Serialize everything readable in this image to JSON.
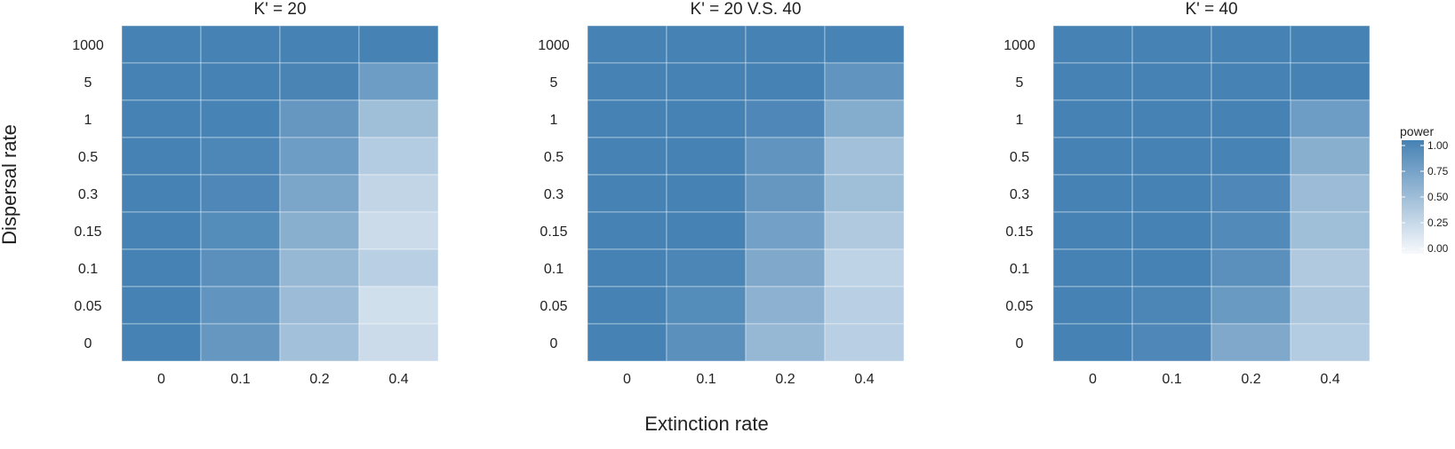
{
  "chart_data": {
    "type": "heatmap",
    "xlabel": "Extinction rate",
    "ylabel": "Dispersal rate",
    "x_categories": [
      "0",
      "0.1",
      "0.2",
      "0.4"
    ],
    "y_categories": [
      "1000",
      "5",
      "1",
      "0.5",
      "0.3",
      "0.15",
      "0.1",
      "0.05",
      "0"
    ],
    "color_low": "#f7f9fc",
    "color_high": "#4682b4",
    "legend": {
      "title": "power",
      "ticks": [
        "1.00",
        "0.75",
        "0.50",
        "0.25",
        "0.00"
      ],
      "range": [
        0,
        1
      ],
      "placement": "right"
    },
    "panels": [
      {
        "title": "K' = 20",
        "values": [
          [
            1.0,
            1.0,
            1.0,
            1.0
          ],
          [
            1.0,
            1.0,
            0.98,
            0.78
          ],
          [
            1.0,
            0.99,
            0.82,
            0.5
          ],
          [
            1.0,
            0.96,
            0.78,
            0.38
          ],
          [
            1.0,
            0.95,
            0.7,
            0.3
          ],
          [
            1.0,
            0.92,
            0.62,
            0.25
          ],
          [
            1.0,
            0.88,
            0.55,
            0.35
          ],
          [
            1.0,
            0.85,
            0.52,
            0.22
          ],
          [
            1.0,
            0.82,
            0.48,
            0.25
          ]
        ]
      },
      {
        "title": "K' = 20 V.S. 40",
        "values": [
          [
            1.0,
            1.0,
            1.0,
            0.99
          ],
          [
            1.0,
            1.0,
            1.0,
            0.85
          ],
          [
            1.0,
            1.0,
            0.95,
            0.65
          ],
          [
            1.0,
            1.0,
            0.85,
            0.48
          ],
          [
            1.0,
            1.0,
            0.82,
            0.5
          ],
          [
            1.0,
            1.0,
            0.75,
            0.4
          ],
          [
            1.0,
            0.97,
            0.68,
            0.32
          ],
          [
            1.0,
            0.92,
            0.6,
            0.35
          ],
          [
            1.0,
            0.88,
            0.55,
            0.35
          ]
        ]
      },
      {
        "title": "K' = 40",
        "values": [
          [
            1.0,
            1.0,
            1.0,
            1.0
          ],
          [
            1.0,
            1.0,
            1.0,
            1.0
          ],
          [
            1.0,
            1.0,
            1.0,
            0.78
          ],
          [
            1.0,
            1.0,
            0.99,
            0.62
          ],
          [
            1.0,
            1.0,
            0.95,
            0.52
          ],
          [
            1.0,
            1.0,
            0.93,
            0.5
          ],
          [
            1.0,
            1.0,
            0.88,
            0.4
          ],
          [
            1.0,
            0.97,
            0.8,
            0.42
          ],
          [
            1.0,
            0.95,
            0.68,
            0.38
          ]
        ]
      }
    ]
  }
}
